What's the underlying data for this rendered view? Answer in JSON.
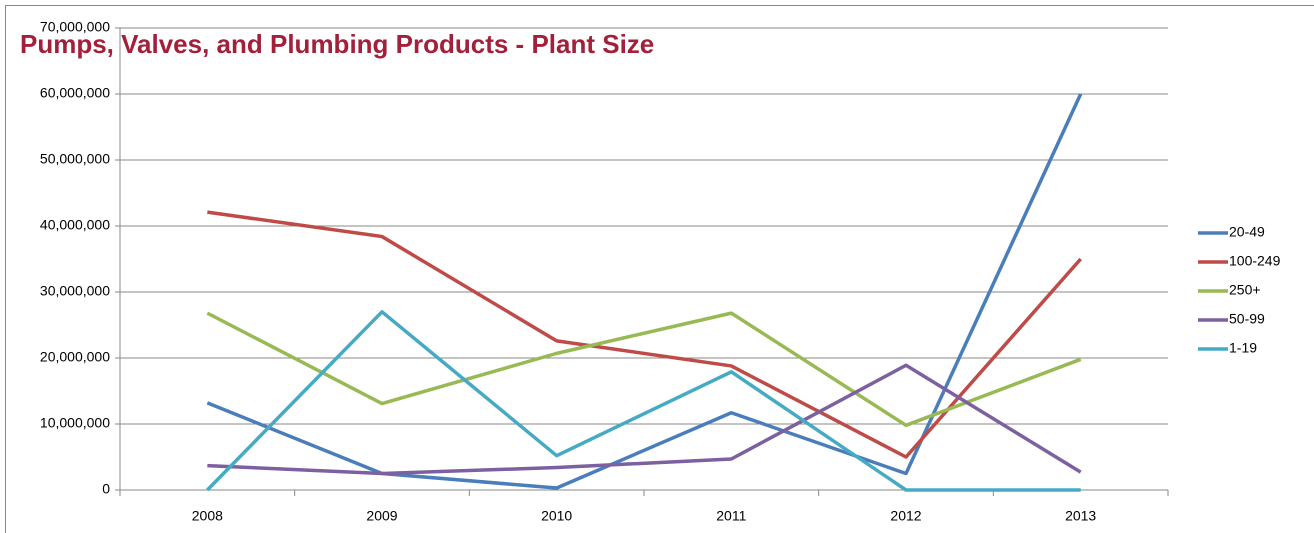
{
  "chart_data": {
    "type": "line",
    "title": "Pumps, Valves, and Plumbing Products - Plant Size",
    "categories": [
      "2008",
      "2009",
      "2010",
      "2011",
      "2012",
      "2013"
    ],
    "series": [
      {
        "name": "20-49",
        "color": "#4a7ebb",
        "values": [
          13200000,
          2500000,
          300000,
          11700000,
          2500000,
          60000000
        ]
      },
      {
        "name": "100-249",
        "color": "#be4b48",
        "values": [
          42100000,
          38400000,
          22600000,
          18800000,
          5000000,
          35000000
        ]
      },
      {
        "name": "250+",
        "color": "#98b954",
        "values": [
          26800000,
          13100000,
          20700000,
          26800000,
          9800000,
          19800000
        ]
      },
      {
        "name": "50-99",
        "color": "#7d60a0",
        "values": [
          3700000,
          2500000,
          3400000,
          4700000,
          18900000,
          2700000
        ]
      },
      {
        "name": "1-19",
        "color": "#46aac5",
        "values": [
          0,
          27000000,
          5200000,
          17900000,
          0,
          0
        ]
      }
    ],
    "ylim": [
      0,
      70000000
    ],
    "yticks": [
      0,
      {
        "value": 10000000,
        "label": "10,000,000"
      },
      {
        "value": 20000000,
        "label": "20,000,000"
      },
      {
        "value": 30000000,
        "label": "30,000,000"
      },
      {
        "value": 40000000,
        "label": "40,000,000"
      },
      {
        "value": 50000000,
        "label": "50,000,000"
      },
      {
        "value": 60000000,
        "label": "60,000,000"
      },
      {
        "value": 70000000,
        "label": "70,000,000"
      }
    ],
    "grid": true,
    "legend": "right"
  }
}
